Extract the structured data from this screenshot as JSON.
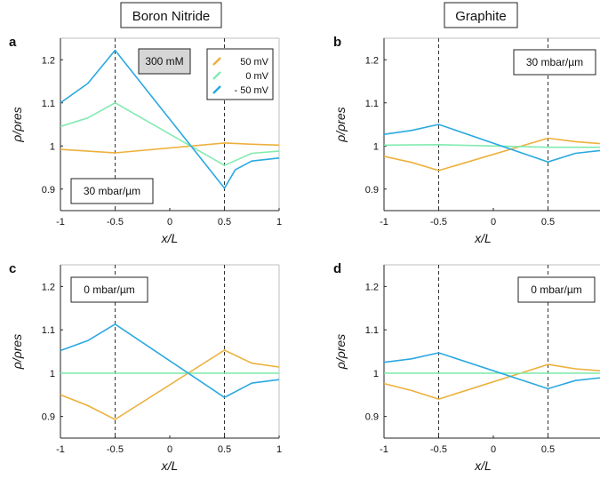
{
  "column_titles": [
    "Boron Nitride",
    "Graphite"
  ],
  "legend": {
    "entries": [
      {
        "label": "50 mV",
        "color": "#EDB03B"
      },
      {
        "label": "0 mV",
        "color": "#82EBB0"
      },
      {
        "label": "- 50 mV",
        "color": "#2AA9E0"
      }
    ]
  },
  "colors": {
    "orange": "#EDB03B",
    "green": "#82EBB0",
    "blue": "#2AA9E0",
    "axis": "#222222",
    "frame": "#bfbfbf"
  },
  "chart_data": [
    {
      "panel": "a",
      "type": "line",
      "xlabel": "x/L",
      "ylabel": "ρ/ρres",
      "xlim": [
        -1,
        1
      ],
      "ylim": [
        0.85,
        1.25
      ],
      "xticks": [
        "-1",
        "-0.5",
        "0",
        "0.5",
        "1"
      ],
      "yticks": [
        "0.9",
        "1",
        "1.1",
        "1.2"
      ],
      "vlines": [
        -0.5,
        0.5
      ],
      "annotations": [
        "300 mM",
        "30 mbar/µm"
      ],
      "series": [
        {
          "name": "50 mV",
          "color": "#EDB03B",
          "x": [
            -1,
            -0.5,
            0.5,
            0.75,
            1
          ],
          "y": [
            0.992,
            0.984,
            1.007,
            1.004,
            1.002
          ]
        },
        {
          "name": "0 mV",
          "color": "#82EBB0",
          "x": [
            -1,
            -0.75,
            -0.5,
            0.5,
            0.75,
            1
          ],
          "y": [
            1.045,
            1.065,
            1.1,
            0.955,
            0.983,
            0.988
          ]
        },
        {
          "name": "- 50 mV",
          "color": "#2AA9E0",
          "x": [
            -1,
            -0.75,
            -0.5,
            0.5,
            0.6,
            0.75,
            1
          ],
          "y": [
            1.1,
            1.145,
            1.222,
            0.902,
            0.945,
            0.965,
            0.972
          ]
        }
      ]
    },
    {
      "panel": "b",
      "type": "line",
      "xlabel": "x/L",
      "ylabel": "ρ/ρres",
      "xlim": [
        -1,
        1
      ],
      "ylim": [
        0.85,
        1.25
      ],
      "xticks": [
        "-1",
        "-0.5",
        "0",
        "0.5"
      ],
      "yticks": [
        "0.9",
        "1",
        "1.1",
        "1.2"
      ],
      "vlines": [
        -0.5,
        0.5
      ],
      "annotations": [
        "30 mbar/µm"
      ],
      "series": [
        {
          "name": "50 mV",
          "color": "#EDB03B",
          "x": [
            -1,
            -0.75,
            -0.5,
            0.5,
            0.75,
            1
          ],
          "y": [
            0.976,
            0.962,
            0.943,
            1.018,
            1.01,
            1.005
          ]
        },
        {
          "name": "0 mV",
          "color": "#82EBB0",
          "x": [
            -1,
            -0.5,
            0.5,
            1
          ],
          "y": [
            1.002,
            1.003,
            0.997,
            0.997
          ]
        },
        {
          "name": "- 50 mV",
          "color": "#2AA9E0",
          "x": [
            -1,
            -0.75,
            -0.5,
            0.5,
            0.75,
            1
          ],
          "y": [
            1.027,
            1.036,
            1.05,
            0.963,
            0.983,
            0.99
          ]
        }
      ]
    },
    {
      "panel": "c",
      "type": "line",
      "xlabel": "x/L",
      "ylabel": "ρ/ρres",
      "xlim": [
        -1,
        1
      ],
      "ylim": [
        0.85,
        1.25
      ],
      "xticks": [
        "-1",
        "-0.5",
        "0",
        "0.5",
        "1"
      ],
      "yticks": [
        "0.9",
        "1",
        "1.1",
        "1.2"
      ],
      "vlines": [
        -0.5,
        0.5
      ],
      "annotations": [
        "0 mbar/µm"
      ],
      "series": [
        {
          "name": "50 mV",
          "color": "#EDB03B",
          "x": [
            -1,
            -0.75,
            -0.5,
            0.5,
            0.75,
            1
          ],
          "y": [
            0.95,
            0.925,
            0.893,
            1.053,
            1.023,
            1.014
          ]
        },
        {
          "name": "0 mV",
          "color": "#82EBB0",
          "x": [
            -1,
            1
          ],
          "y": [
            1.0,
            1.0
          ]
        },
        {
          "name": "- 50 mV",
          "color": "#2AA9E0",
          "x": [
            -1,
            -0.75,
            -0.5,
            0.5,
            0.75,
            1
          ],
          "y": [
            1.052,
            1.075,
            1.113,
            0.944,
            0.977,
            0.985
          ]
        }
      ]
    },
    {
      "panel": "d",
      "type": "line",
      "xlabel": "x/L",
      "ylabel": "ρ/ρres",
      "xlim": [
        -1,
        1
      ],
      "ylim": [
        0.85,
        1.25
      ],
      "xticks": [
        "-1",
        "-0.5",
        "0",
        "0.5"
      ],
      "yticks": [
        "0.9",
        "1",
        "1.1",
        "1.2"
      ],
      "vlines": [
        -0.5,
        0.5
      ],
      "annotations": [
        "0 mbar/µm"
      ],
      "series": [
        {
          "name": "50 mV",
          "color": "#EDB03B",
          "x": [
            -1,
            -0.75,
            -0.5,
            0.5,
            0.75,
            1
          ],
          "y": [
            0.976,
            0.96,
            0.94,
            1.02,
            1.01,
            1.005
          ]
        },
        {
          "name": "0 mV",
          "color": "#82EBB0",
          "x": [
            -1,
            1
          ],
          "y": [
            1.0,
            1.0
          ]
        },
        {
          "name": "- 50 mV",
          "color": "#2AA9E0",
          "x": [
            -1,
            -0.75,
            -0.5,
            0.5,
            0.75,
            1
          ],
          "y": [
            1.025,
            1.033,
            1.047,
            0.964,
            0.983,
            0.99
          ]
        }
      ]
    }
  ]
}
